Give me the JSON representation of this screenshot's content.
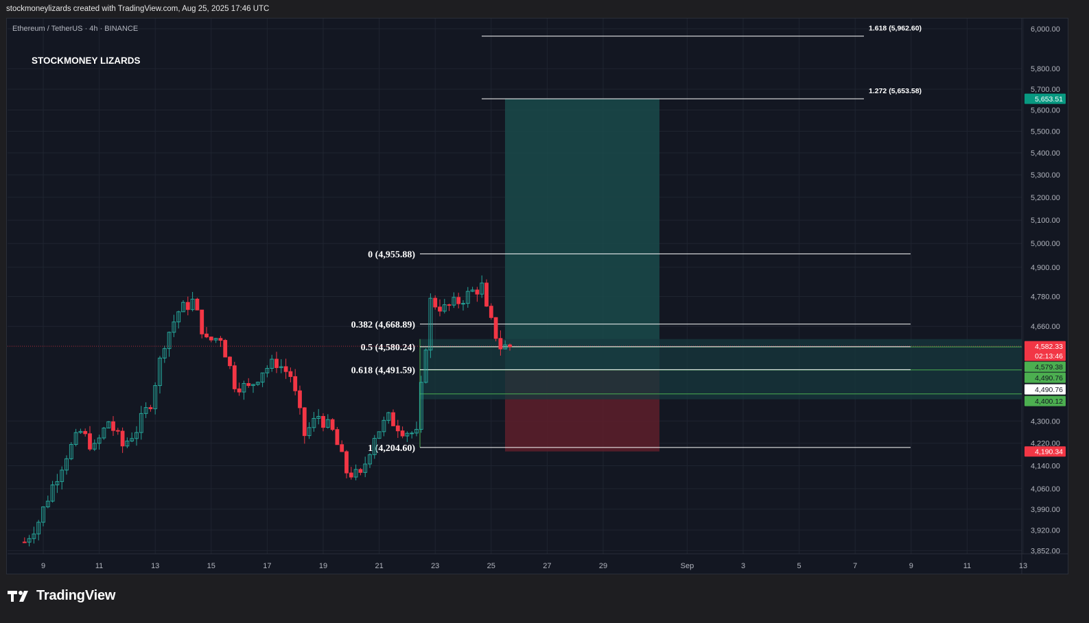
{
  "header": {
    "caption": "stockmoneylizards created with TradingView.com, Aug 25, 2025 17:46 UTC"
  },
  "chart_header": {
    "symbol": "Ethereum / TetherUS · 4h · BINANCE",
    "author_label": "STOCKMONEY LIZARDS"
  },
  "footer": {
    "brand": "TradingView"
  },
  "colors": {
    "up": "#26a69a",
    "down": "#f23645",
    "background": "#131722",
    "grid": "#1f2430",
    "target_zone": "#1a4a4a",
    "stop_zone": "#5a1e2a",
    "entry_zone": "#17383d"
  },
  "chart_data": {
    "type": "candlestick",
    "title": "",
    "xlabel": "",
    "ylabel": "",
    "y_scale": "log",
    "grid": true,
    "y_ticks": [
      6000,
      5800,
      5700,
      5600,
      5500,
      5400,
      5300,
      5200,
      5100,
      5000,
      4900,
      4780,
      4660,
      4300,
      4220,
      4140,
      4060,
      3990,
      3920,
      3852
    ],
    "y_tick_labels": [
      "6,000.00",
      "5,800.00",
      "5,700.00",
      "5,600.00",
      "5,500.00",
      "5,400.00",
      "5,300.00",
      "5,200.00",
      "5,100.00",
      "5,000.00",
      "4,900.00",
      "4,780.00",
      "4,660.00",
      "4,300.00",
      "4,220.00",
      "4,140.00",
      "4,060.00",
      "3,990.00",
      "3,920.00",
      "3,852.00"
    ],
    "x_ticks": [
      "9",
      "11",
      "13",
      "15",
      "17",
      "19",
      "21",
      "23",
      "25",
      "27",
      "29",
      "Sep",
      "3",
      "5",
      "7",
      "9",
      "11",
      "13"
    ],
    "price_path": [
      [
        "Aug 8 08:00",
        3880
      ],
      [
        "Aug 8 20:00",
        3950
      ],
      [
        "Aug 9 08:00",
        4070
      ],
      [
        "Aug 9 20:00",
        4180
      ],
      [
        "Aug 10 08:00",
        4260
      ],
      [
        "Aug 10 20:00",
        4200
      ],
      [
        "Aug 11 08:00",
        4300
      ],
      [
        "Aug 11 20:00",
        4210
      ],
      [
        "Aug 12 08:00",
        4270
      ],
      [
        "Aug 12 20:00",
        4370
      ],
      [
        "Aug 13 08:00",
        4600
      ],
      [
        "Aug 13 20:00",
        4720
      ],
      [
        "Aug 14 08:00",
        4760
      ],
      [
        "Aug 14 20:00",
        4600
      ],
      [
        "Aug 15 08:00",
        4620
      ],
      [
        "Aug 15 20:00",
        4440
      ],
      [
        "Aug 16 08:00",
        4420
      ],
      [
        "Aug 16 20:00",
        4490
      ],
      [
        "Aug 17 08:00",
        4520
      ],
      [
        "Aug 17 20:00",
        4470
      ],
      [
        "Aug 18 08:00",
        4250
      ],
      [
        "Aug 18 20:00",
        4320
      ],
      [
        "Aug 19 08:00",
        4260
      ],
      [
        "Aug 19 20:00",
        4120
      ],
      [
        "Aug 20 08:00",
        4100
      ],
      [
        "Aug 20 20:00",
        4250
      ],
      [
        "Aug 21 08:00",
        4310
      ],
      [
        "Aug 21 20:00",
        4270
      ],
      [
        "Aug 22 08:00",
        4250
      ],
      [
        "Aug 22 20:00",
        4760
      ],
      [
        "Aug 23 08:00",
        4730
      ],
      [
        "Aug 23 20:00",
        4760
      ],
      [
        "Aug 24 08:00",
        4800
      ],
      [
        "Aug 24 16:00",
        4820
      ],
      [
        "Aug 24 20:00",
        4720
      ],
      [
        "Aug 25 08:00",
        4580
      ],
      [
        "Aug 25 16:00",
        4582.33
      ]
    ],
    "fibonacci": [
      {
        "label": "0 (4,955.88)",
        "price": 4955.88
      },
      {
        "label": "0.382 (4,668.89)",
        "price": 4668.89
      },
      {
        "label": "0.5 (4,580.24)",
        "price": 4580.24
      },
      {
        "label": "0.618 (4,491.59)",
        "price": 4491.59
      },
      {
        "label": "1 (4,204.60)",
        "price": 4204.6
      },
      {
        "label": "1.272 (5,653.58)",
        "price": 5653.58
      },
      {
        "label": "1.618 (5,962.60)",
        "price": 5962.6
      }
    ],
    "entry_zone": {
      "top": 4610,
      "bottom": 4380,
      "lines": [
        4579.38,
        4490.76,
        4400.12
      ]
    },
    "position": {
      "entry": 4490.76,
      "target": 5653.51,
      "stop": 4190.34
    },
    "price_tags": [
      {
        "text": "5,653.51",
        "price": 5653.51,
        "color": "#089981",
        "fg": "#ffffff"
      },
      {
        "text": "4,582.33",
        "price": 4582.33,
        "color": "#f23645",
        "fg": "#ffffff"
      },
      {
        "text": "02:13:46",
        "price": 4582.33,
        "color": "#f23645",
        "fg": "#ffffff",
        "sub": true
      },
      {
        "text": "4,579.38",
        "price": 4579.38,
        "color": "#4caf50",
        "fg": "#131722"
      },
      {
        "text": "4,490.76",
        "price": 4490.76,
        "color": "#4caf50",
        "fg": "#131722"
      },
      {
        "text": "4,490.76",
        "price": 4490.76,
        "color": "#ffffff",
        "fg": "#131722"
      },
      {
        "text": "4,400.12",
        "price": 4400.12,
        "color": "#4caf50",
        "fg": "#131722"
      },
      {
        "text": "4,190.34",
        "price": 4190.34,
        "color": "#f23645",
        "fg": "#ffffff"
      }
    ]
  }
}
